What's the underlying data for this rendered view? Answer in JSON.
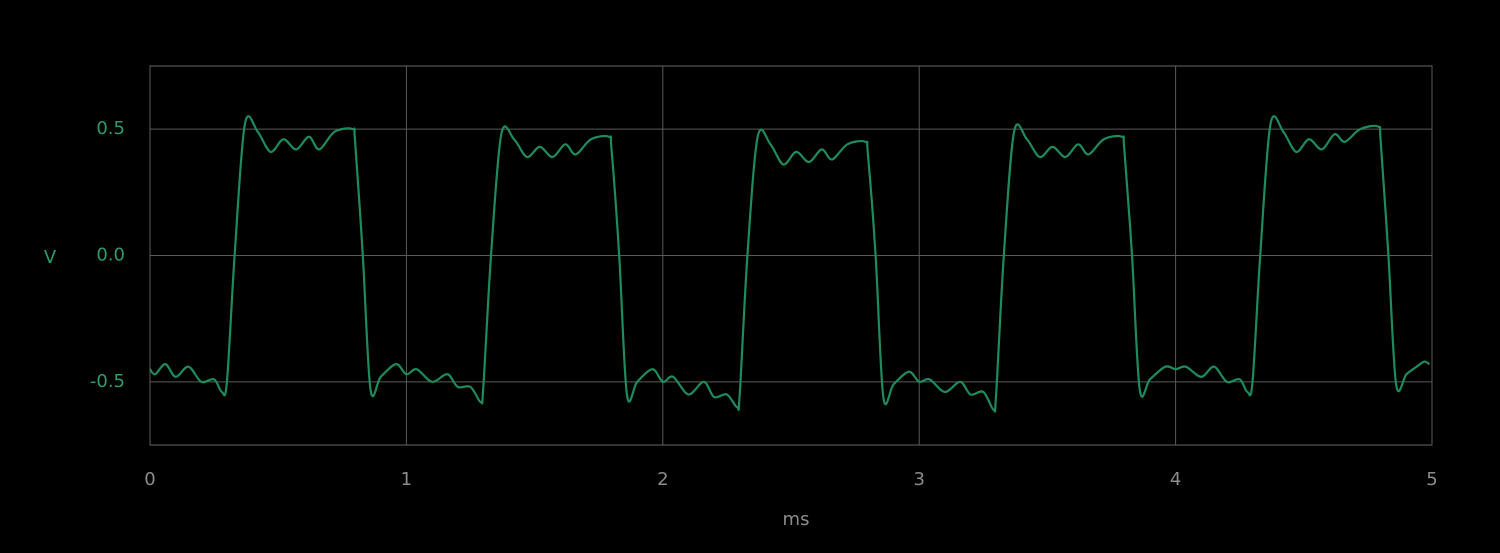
{
  "chart_data": {
    "type": "line",
    "xlabel": "ms",
    "ylabel": "V",
    "color": "#1f8a5c",
    "xlim": [
      0,
      5
    ],
    "xticks": [
      0,
      1,
      2,
      3,
      4,
      5
    ],
    "ylim": [
      -0.75,
      0.75
    ],
    "yticks": [
      -0.5,
      {
        "value": 0,
        "label": "0.0"
      },
      0.5
    ],
    "grid": true,
    "x": [
      0,
      0.02,
      0.06,
      0.1,
      0.15,
      0.2,
      0.25,
      0.28,
      0.3,
      0.33,
      0.37,
      0.42,
      0.47,
      0.52,
      0.57,
      0.62,
      0.66,
      0.72,
      0.79,
      0.8,
      0.83,
      0.86,
      0.9,
      0.96,
      1.0,
      1.04,
      1.1,
      1.16,
      1.2,
      1.25,
      1.29,
      1.3,
      1.33,
      1.37,
      1.42,
      1.47,
      1.52,
      1.57,
      1.62,
      1.66,
      1.72,
      1.79,
      1.8,
      1.83,
      1.86,
      1.9,
      1.96,
      2.0,
      2.04,
      2.1,
      2.16,
      2.2,
      2.25,
      2.29,
      2.3,
      2.33,
      2.37,
      2.42,
      2.47,
      2.52,
      2.57,
      2.62,
      2.66,
      2.72,
      2.79,
      2.8,
      2.83,
      2.86,
      2.9,
      2.96,
      3.0,
      3.04,
      3.1,
      3.16,
      3.2,
      3.25,
      3.29,
      3.3,
      3.33,
      3.37,
      3.42,
      3.47,
      3.52,
      3.57,
      3.62,
      3.66,
      3.72,
      3.79,
      3.8,
      3.83,
      3.86,
      3.9,
      3.96,
      4.0,
      4.04,
      4.1,
      4.15,
      4.2,
      4.25,
      4.28,
      4.3,
      4.33,
      4.37,
      4.42,
      4.47,
      4.52,
      4.57,
      4.62,
      4.66,
      4.72,
      4.79,
      4.8,
      4.83,
      4.86,
      4.9,
      4.94,
      4.97,
      4.99
    ],
    "values": [
      -0.45,
      -0.47,
      -0.43,
      -0.48,
      -0.44,
      -0.5,
      -0.49,
      -0.54,
      -0.5,
      0.0,
      0.52,
      0.49,
      0.41,
      0.46,
      0.42,
      0.47,
      0.42,
      0.49,
      0.5,
      0.45,
      0.0,
      -0.53,
      -0.48,
      -0.43,
      -0.47,
      -0.45,
      -0.5,
      -0.47,
      -0.52,
      -0.52,
      -0.58,
      -0.52,
      0.0,
      0.48,
      0.46,
      0.39,
      0.43,
      0.39,
      0.44,
      0.4,
      0.46,
      0.47,
      0.42,
      0.0,
      -0.55,
      -0.5,
      -0.45,
      -0.5,
      -0.48,
      -0.55,
      -0.5,
      -0.56,
      -0.55,
      -0.6,
      -0.55,
      0.0,
      0.47,
      0.44,
      0.36,
      0.41,
      0.37,
      0.42,
      0.38,
      0.44,
      0.45,
      0.4,
      0.0,
      -0.56,
      -0.51,
      -0.46,
      -0.5,
      -0.49,
      -0.54,
      -0.5,
      -0.55,
      -0.54,
      -0.61,
      -0.55,
      0.0,
      0.49,
      0.46,
      0.39,
      0.43,
      0.39,
      0.44,
      0.4,
      0.46,
      0.47,
      0.42,
      0.0,
      -0.53,
      -0.49,
      -0.44,
      -0.45,
      -0.44,
      -0.48,
      -0.44,
      -0.5,
      -0.49,
      -0.54,
      -0.5,
      0.0,
      0.52,
      0.49,
      0.41,
      0.46,
      0.42,
      0.48,
      0.45,
      0.5,
      0.51,
      0.45,
      0.0,
      -0.51,
      -0.47,
      -0.44,
      -0.42,
      -0.43
    ]
  }
}
